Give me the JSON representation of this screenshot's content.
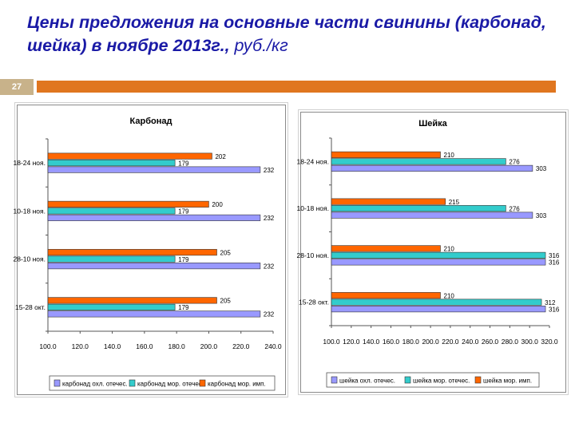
{
  "slide": {
    "title_main": "Цены предложения на основные части свинины (карбонад, шейка) в ноябре 2013г.,",
    "title_unit": " руб./кг",
    "page_number": "27"
  },
  "colors": {
    "title": "#1a1aa6",
    "accent": "#e0761f",
    "page_badge": "#c8b28a"
  },
  "chart_data": [
    {
      "type": "bar",
      "orientation": "horizontal",
      "title": "Карбонад",
      "categories": [
        "18-24 ноя.",
        "10-18 ноя.",
        "28-10 ноя.",
        "15-28 окт."
      ],
      "series": [
        {
          "name": "карбонад охл. отечес.",
          "color": "#9999ff",
          "values": [
            232,
            232,
            232,
            232
          ]
        },
        {
          "name": "карбонад мор. отечес.",
          "color": "#33cccc",
          "values": [
            179,
            179,
            179,
            179
          ]
        },
        {
          "name": "карбонад мор. имп.",
          "color": "#ff6600",
          "values": [
            202,
            200,
            205,
            205
          ]
        }
      ],
      "xlim": [
        100,
        240
      ],
      "xticks": [
        "100.0",
        "120.0",
        "140.0",
        "160.0",
        "180.0",
        "200.0",
        "220.0",
        "240.0"
      ],
      "legend": "bottom",
      "grid": false
    },
    {
      "type": "bar",
      "orientation": "horizontal",
      "title": "Шейка",
      "categories": [
        "18-24 ноя.",
        "10-18 ноя.",
        "28-10 ноя.",
        "15-28 окт."
      ],
      "series": [
        {
          "name": "шейка охл. отечес.",
          "color": "#9999ff",
          "values": [
            303,
            303,
            316,
            316
          ]
        },
        {
          "name": "шейка мор. отечес.",
          "color": "#33cccc",
          "values": [
            276,
            276,
            316,
            312
          ]
        },
        {
          "name": "шейка мор. имп.",
          "color": "#ff6600",
          "values": [
            210,
            215,
            210,
            210
          ]
        }
      ],
      "xlim": [
        100,
        320
      ],
      "xticks": [
        "100.0",
        "120.0",
        "140.0",
        "160.0",
        "180.0",
        "200.0",
        "220.0",
        "240.0",
        "260.0",
        "280.0",
        "300.0",
        "320.0"
      ],
      "legend": "bottom",
      "grid": false
    }
  ]
}
